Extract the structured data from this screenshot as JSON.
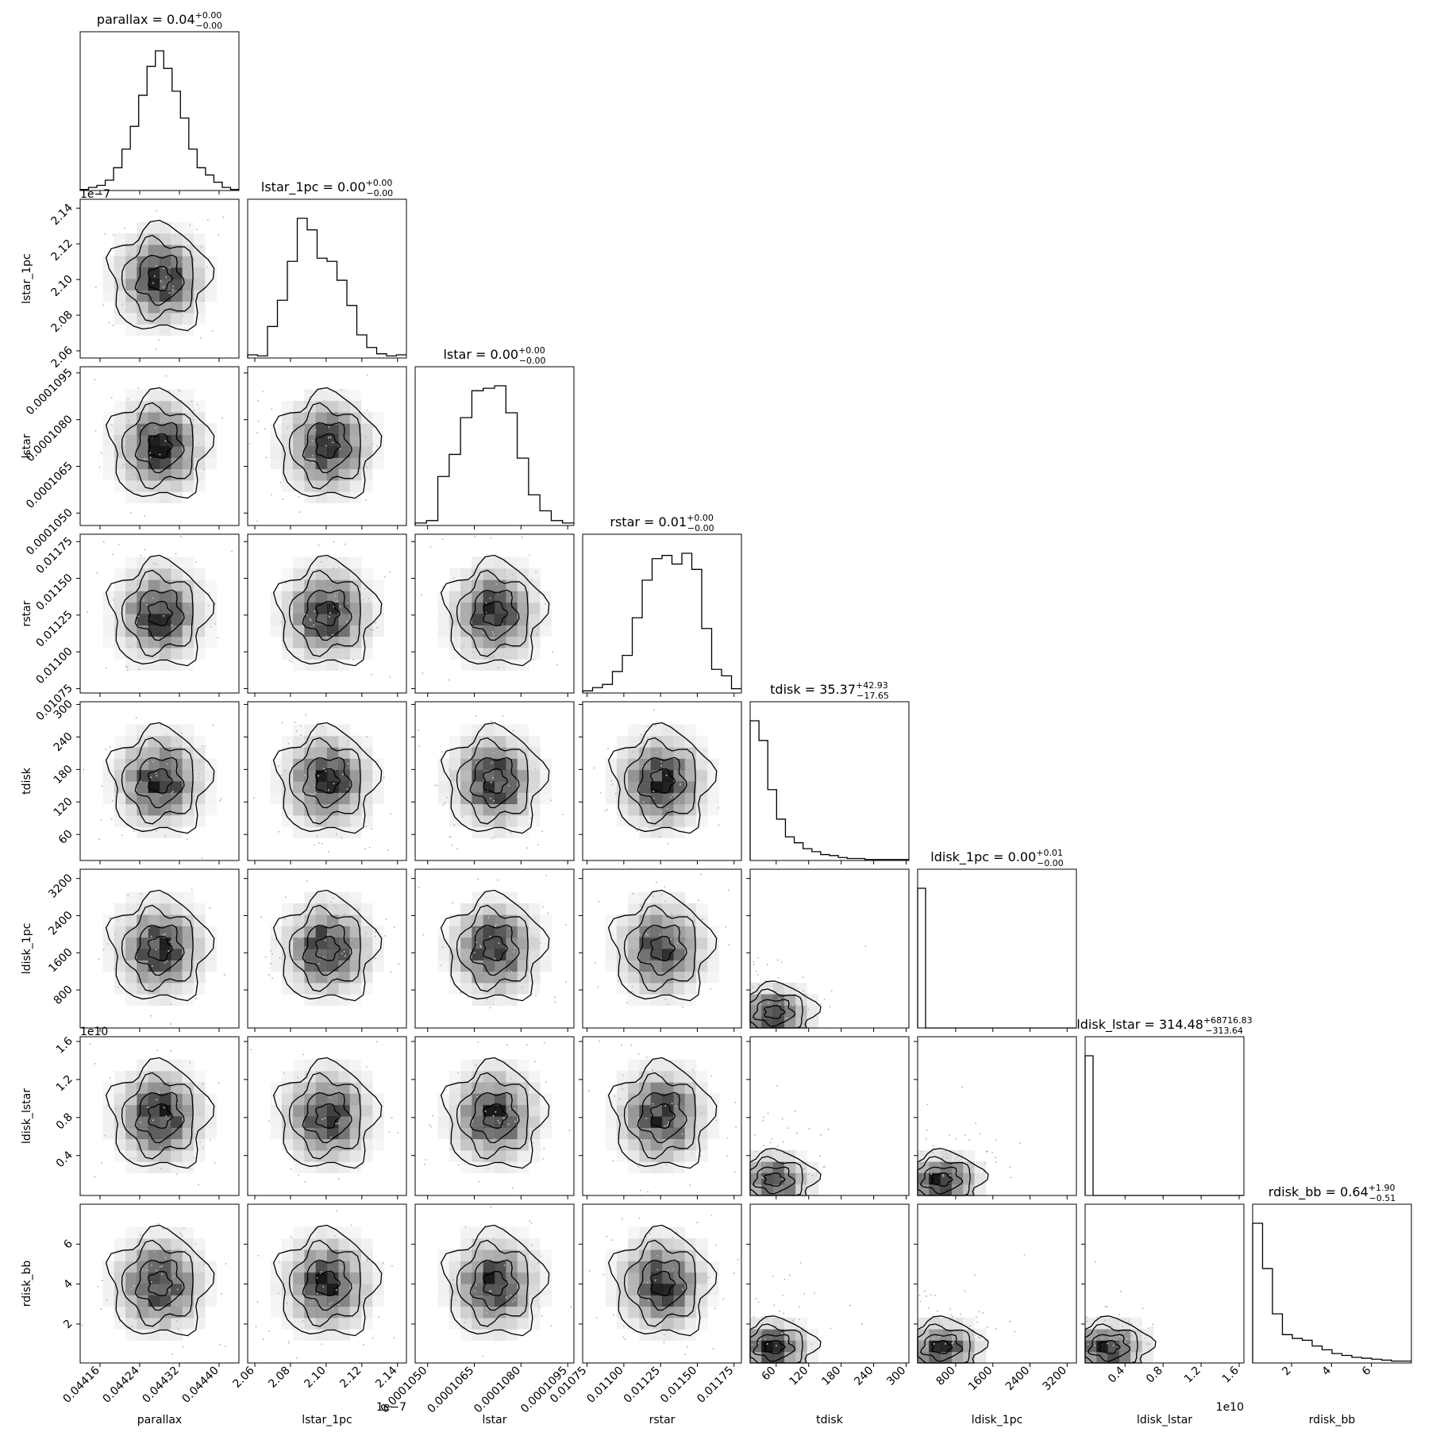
{
  "chart_data": {
    "type": "corner",
    "params": [
      {
        "name": "parallax",
        "label": "parallax",
        "range": [
          0.04412,
          0.04444
        ],
        "ticks": [
          "0.04416",
          "0.04424",
          "0.04432",
          "0.04440"
        ],
        "tick_values": [
          0.04416,
          0.04424,
          0.04432,
          0.0444
        ],
        "offset_text": "",
        "title": {
          "text": "parallax = 0.04",
          "plus": "+0.00",
          "minus": "−0.00"
        },
        "hist": [
          1,
          3,
          5,
          10,
          22,
          40,
          62,
          92,
          120,
          135,
          118,
          96,
          70,
          40,
          22,
          15,
          8,
          3,
          1
        ]
      },
      {
        "name": "lstar_1pc",
        "label": "lstar_1pc",
        "range": [
          2.056,
          2.145
        ],
        "ticks": [
          "2.06",
          "2.08",
          "2.10",
          "2.12",
          "2.14"
        ],
        "tick_values": [
          2.06,
          2.08,
          2.1,
          2.12,
          2.14
        ],
        "offset_text": "1e−7",
        "title": {
          "text": "lstar_1pc = 0.00",
          "plus": "+0.00",
          "minus": "−0.00"
        },
        "hist": [
          3,
          2,
          30,
          55,
          92,
          133,
          122,
          95,
          92,
          74,
          50,
          22,
          10,
          4,
          2,
          3
        ]
      },
      {
        "name": "lstar",
        "label": "lstar",
        "range": [
          0.0001046,
          0.0001097
        ],
        "ticks": [
          "0.0001050",
          "0.0001065",
          "0.0001080",
          "0.0001095"
        ],
        "tick_values": [
          0.000105,
          0.0001065,
          0.000108,
          0.0001095
        ],
        "offset_text": "",
        "title": {
          "text": "lstar = 0.00",
          "plus": "+0.00",
          "minus": "−0.00"
        },
        "hist": [
          2,
          4,
          40,
          58,
          88,
          110,
          112,
          114,
          92,
          55,
          25,
          12,
          4,
          2
        ]
      },
      {
        "name": "rstar",
        "label": "rstar",
        "range": [
          0.01072,
          0.0118
        ],
        "ticks": [
          "0.01075",
          "0.01100",
          "0.01125",
          "0.01150",
          "0.01175"
        ],
        "tick_values": [
          0.01075,
          0.011,
          0.01125,
          0.0115,
          0.01175
        ],
        "offset_text": "",
        "title": {
          "text": "rstar = 0.01",
          "plus": "+0.00",
          "minus": "−0.00"
        },
        "hist": [
          2,
          5,
          8,
          20,
          35,
          70,
          105,
          125,
          128,
          120,
          130,
          115,
          60,
          22,
          16,
          4
        ]
      },
      {
        "name": "tdisk",
        "label": "tdisk",
        "range": [
          12,
          305
        ],
        "ticks": [
          "60",
          "120",
          "180",
          "240",
          "300"
        ],
        "tick_values": [
          60,
          120,
          180,
          240,
          300
        ],
        "offset_text": "",
        "title": {
          "text": "tdisk = 35.37",
          "plus": "+42.93",
          "minus": "−17.65"
        },
        "hist": [
          142,
          122,
          72,
          42,
          24,
          18,
          12,
          9,
          6,
          5,
          3,
          2,
          2,
          1,
          1,
          1,
          1,
          1
        ]
      },
      {
        "name": "ldisk_1pc",
        "label": "ldisk_1pc",
        "range": [
          -20,
          3400
        ],
        "ticks": [
          "800",
          "1600",
          "2400",
          "3200"
        ],
        "tick_values": [
          800,
          1600,
          2400,
          3200
        ],
        "offset_text": "",
        "title": {
          "text": "ldisk_1pc = 0.00",
          "plus": "+0.01",
          "minus": "−0.00"
        },
        "hist": [
          163,
          0,
          0,
          0,
          0,
          0,
          0,
          0,
          0,
          0,
          0,
          0,
          0,
          0,
          0,
          0,
          0,
          0,
          0,
          0
        ]
      },
      {
        "name": "ldisk_lstar",
        "label": "ldisk_lstar",
        "range": [
          -0.02,
          1.65
        ],
        "ticks": [
          "0.4",
          "0.8",
          "1.2",
          "1.6"
        ],
        "tick_values": [
          0.4,
          0.8,
          1.2,
          1.6
        ],
        "offset_text": "1e10",
        "title": {
          "text": "ldisk_lstar = 314.48",
          "plus": "+68716.83",
          "minus": "−313.64"
        },
        "hist": [
          165,
          0,
          0,
          0,
          0,
          0,
          0,
          0,
          0,
          0,
          0,
          0,
          0,
          0,
          0,
          0,
          0,
          0,
          0,
          0
        ]
      },
      {
        "name": "rdisk_bb",
        "label": "rdisk_bb",
        "range": [
          0.05,
          8.0
        ],
        "ticks": [
          "2",
          "4",
          "6"
        ],
        "tick_values": [
          2,
          4,
          6
        ],
        "offset_text": "",
        "title": {
          "text": "rdisk_bb = 0.64",
          "plus": "+1.90",
          "minus": "−0.51"
        },
        "hist": [
          148,
          100,
          52,
          30,
          26,
          24,
          18,
          14,
          10,
          8,
          6,
          5,
          4,
          3,
          2,
          2
        ]
      }
    ],
    "row_y_ticks": [
      null,
      [
        "2.06",
        "2.08",
        "2.10",
        "2.12",
        "2.14"
      ],
      [
        "0.0001050",
        "0.0001065",
        "0.0001080",
        "0.0001095"
      ],
      [
        "0.01075",
        "0.01100",
        "0.01125",
        "0.01150",
        "0.01175"
      ],
      [
        "60",
        "120",
        "180",
        "240",
        "300"
      ],
      [
        "800",
        "1600",
        "2400",
        "3200"
      ],
      [
        "0.4",
        "0.8",
        "1.2",
        "1.6"
      ],
      [
        "2",
        "4",
        "6"
      ]
    ]
  }
}
